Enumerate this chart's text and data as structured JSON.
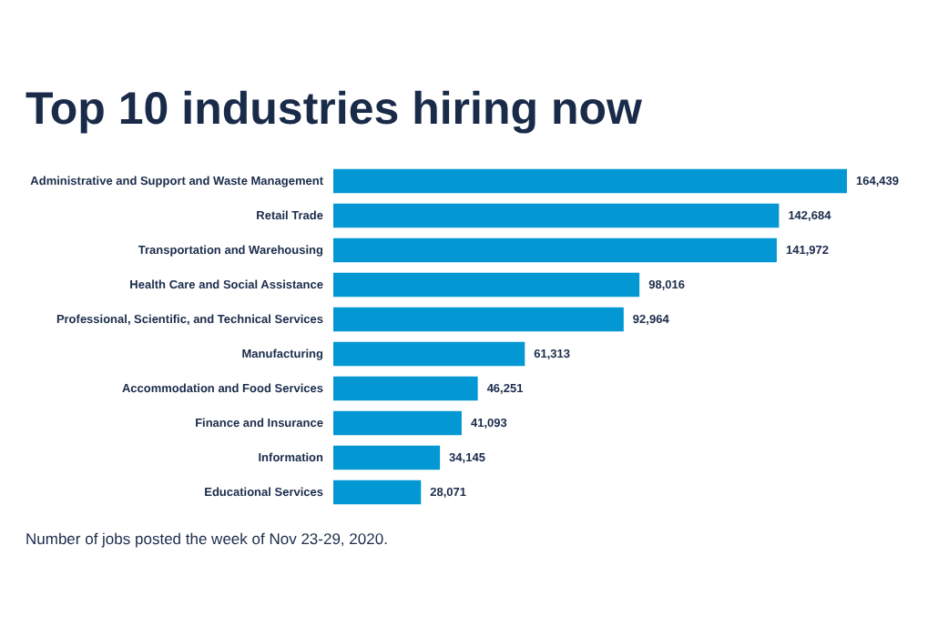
{
  "chart_data": {
    "type": "bar",
    "orientation": "horizontal",
    "title": "Top 10 industries hiring now",
    "categories": [
      "Administrative and Support and Waste Management",
      "Retail Trade",
      "Transportation and Warehousing",
      "Health Care and Social Assistance",
      "Professional, Scientific, and Technical Services",
      "Manufacturing",
      "Accommodation and Food Services",
      "Finance and Insurance",
      "Information",
      "Educational Services"
    ],
    "values": [
      164439,
      142684,
      141972,
      98016,
      92964,
      61313,
      46251,
      41093,
      34145,
      28071
    ],
    "value_labels": [
      "164,439",
      "142,684",
      "141,972",
      "98,016",
      "92,964",
      "61,313",
      "46,251",
      "41,093",
      "34,145",
      "28,071"
    ],
    "color": "#0398d3",
    "annotations": [
      "Number of jobs posted the week of Nov 23-29, 2020."
    ]
  }
}
